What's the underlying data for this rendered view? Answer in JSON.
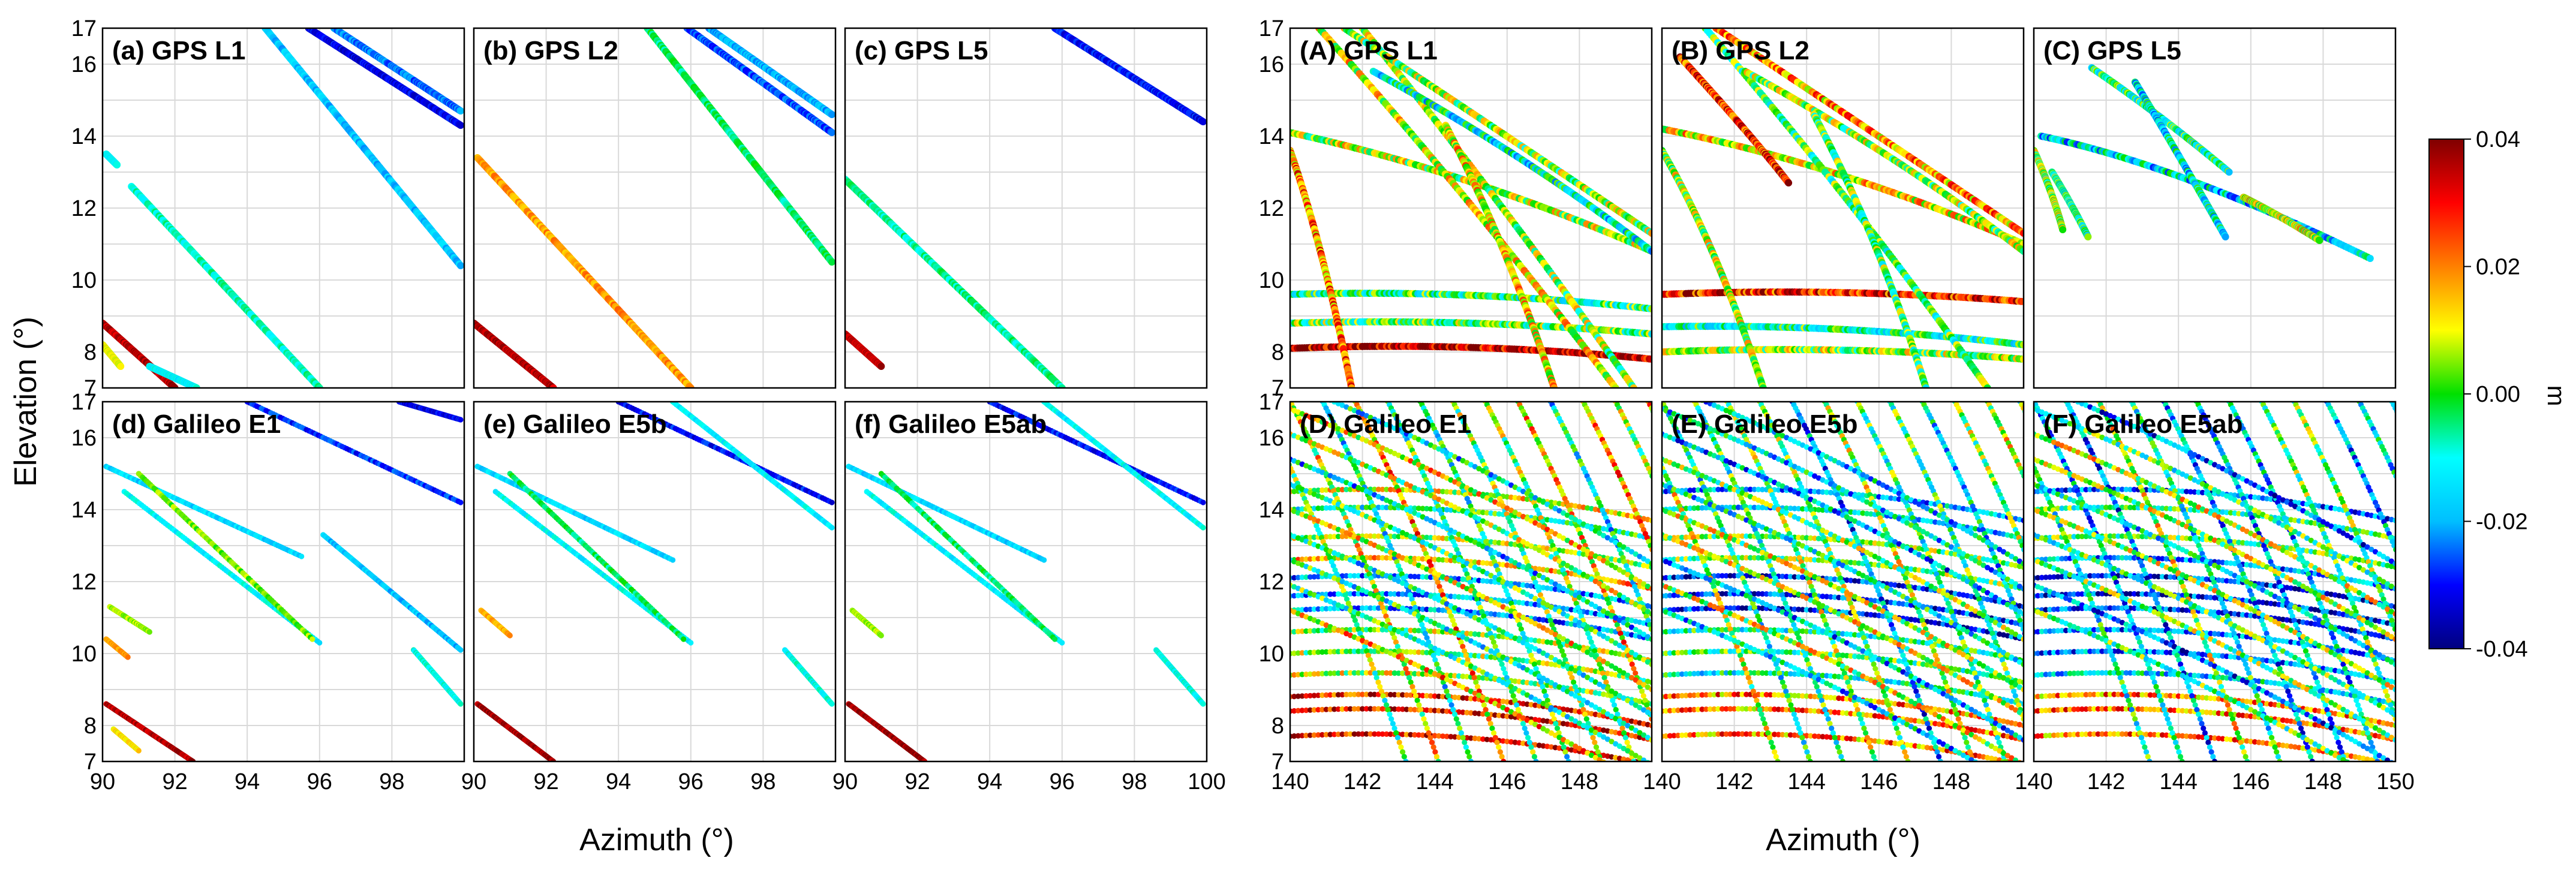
{
  "figure": {
    "y_axis_label": "Elevation (°)",
    "x_axis_label_left": "Azimuth (°)",
    "x_axis_label_right": "Azimuth (°)"
  },
  "colorbar": {
    "label": "m",
    "range": [
      -0.04,
      0.04
    ],
    "ticks": [
      "0.04",
      "0.02",
      "0.00",
      "-0.02",
      "-0.04"
    ],
    "colors": [
      "#00007f",
      "#0000ff",
      "#00bfff",
      "#00ffff",
      "#00e000",
      "#ffff00",
      "#ff8000",
      "#ff0000",
      "#7f0000"
    ]
  },
  "chart_data": [
    {
      "id": "a",
      "type": "scatter",
      "title": "(a) GPS L1",
      "xlim": [
        90,
        100
      ],
      "ylim": [
        7,
        17
      ],
      "xticks": [
        "90",
        "92",
        "94",
        "96",
        "98",
        "100"
      ],
      "yticks": [
        "7",
        "8",
        "10",
        "12",
        "14",
        "16",
        "17"
      ],
      "tracks": [
        {
          "x0": 90.1,
          "y0": 13.5,
          "x1": 90.4,
          "y1": 13.2,
          "v": -0.012
        },
        {
          "x0": 90.8,
          "y0": 12.6,
          "x1": 96.0,
          "y1": 7.0,
          "v": -0.008
        },
        {
          "x0": 94.5,
          "y0": 17.0,
          "x1": 99.9,
          "y1": 10.4,
          "v": -0.018
        },
        {
          "x0": 95.7,
          "y0": 17.0,
          "x1": 99.9,
          "y1": 14.3,
          "v": -0.032
        },
        {
          "x0": 96.4,
          "y0": 17.0,
          "x1": 99.9,
          "y1": 14.7,
          "v": -0.024
        },
        {
          "x0": 90.0,
          "y0": 8.8,
          "x1": 92.0,
          "y1": 7.0,
          "v": 0.036
        },
        {
          "x0": 90.0,
          "y0": 8.2,
          "x1": 90.5,
          "y1": 7.6,
          "v": 0.01
        },
        {
          "x0": 91.3,
          "y0": 7.6,
          "x1": 92.6,
          "y1": 7.0,
          "v": -0.012
        }
      ]
    },
    {
      "id": "b",
      "type": "scatter",
      "title": "(b) GPS L2",
      "xlim": [
        90,
        100
      ],
      "ylim": [
        7,
        17
      ],
      "xticks": [
        "90",
        "92",
        "94",
        "96",
        "98",
        "100"
      ],
      "yticks": [
        "7",
        "8",
        "10",
        "12",
        "14",
        "16",
        "17"
      ],
      "tracks": [
        {
          "x0": 90.1,
          "y0": 13.4,
          "x1": 96.0,
          "y1": 7.0,
          "v": 0.018
        },
        {
          "x0": 94.8,
          "y0": 17.0,
          "x1": 99.9,
          "y1": 10.5,
          "v": -0.004
        },
        {
          "x0": 95.9,
          "y0": 17.0,
          "x1": 99.9,
          "y1": 14.1,
          "v": -0.026
        },
        {
          "x0": 96.5,
          "y0": 17.0,
          "x1": 99.9,
          "y1": 14.6,
          "v": -0.02
        },
        {
          "x0": 90.0,
          "y0": 8.8,
          "x1": 92.2,
          "y1": 7.0,
          "v": 0.036
        }
      ]
    },
    {
      "id": "c",
      "type": "scatter",
      "title": "(c) GPS L5",
      "xlim": [
        90,
        100
      ],
      "ylim": [
        7,
        17
      ],
      "xticks": [
        "90",
        "92",
        "94",
        "96",
        "98",
        "100"
      ],
      "yticks": [
        "7",
        "8",
        "10",
        "12",
        "14",
        "16",
        "17"
      ],
      "tracks": [
        {
          "x0": 90.0,
          "y0": 12.8,
          "x1": 96.0,
          "y1": 7.0,
          "v": -0.006
        },
        {
          "x0": 95.8,
          "y0": 17.0,
          "x1": 99.9,
          "y1": 14.4,
          "v": -0.03
        },
        {
          "x0": 90.0,
          "y0": 8.5,
          "x1": 91.0,
          "y1": 7.6,
          "v": 0.034
        }
      ]
    },
    {
      "id": "d",
      "type": "scatter",
      "title": "(d) Galileo E1",
      "xlim": [
        90,
        100
      ],
      "ylim": [
        7,
        17
      ],
      "xticks": [
        "90",
        "92",
        "94",
        "96",
        "98",
        "100"
      ],
      "yticks": [
        "7",
        "8",
        "10",
        "12",
        "14",
        "16",
        "17"
      ],
      "tracks": [
        {
          "x0": 90.1,
          "y0": 15.2,
          "x1": 95.5,
          "y1": 12.7,
          "v": -0.016
        },
        {
          "x0": 90.6,
          "y0": 14.5,
          "x1": 96.0,
          "y1": 10.3,
          "v": -0.012
        },
        {
          "x0": 91.0,
          "y0": 15.0,
          "x1": 95.8,
          "y1": 10.4,
          "v": 0.004
        },
        {
          "x0": 94.0,
          "y0": 17.0,
          "x1": 99.9,
          "y1": 14.2,
          "v": -0.028
        },
        {
          "x0": 96.1,
          "y0": 13.3,
          "x1": 99.9,
          "y1": 10.1,
          "v": -0.018
        },
        {
          "x0": 98.6,
          "y0": 10.1,
          "x1": 99.9,
          "y1": 8.6,
          "v": -0.01
        },
        {
          "x0": 90.2,
          "y0": 11.3,
          "x1": 91.3,
          "y1": 10.6,
          "v": 0.006
        },
        {
          "x0": 90.1,
          "y0": 10.4,
          "x1": 90.7,
          "y1": 9.9,
          "v": 0.018
        },
        {
          "x0": 90.1,
          "y0": 8.6,
          "x1": 92.5,
          "y1": 7.0,
          "v": 0.036
        },
        {
          "x0": 90.3,
          "y0": 7.9,
          "x1": 91.0,
          "y1": 7.3,
          "v": 0.012
        },
        {
          "x0": 98.2,
          "y0": 17.0,
          "x1": 99.9,
          "y1": 16.5,
          "v": -0.032
        }
      ]
    },
    {
      "id": "e",
      "type": "scatter",
      "title": "(e) Galileo E5b",
      "xlim": [
        90,
        100
      ],
      "ylim": [
        7,
        17
      ],
      "xticks": [
        "90",
        "92",
        "94",
        "96",
        "98",
        "100"
      ],
      "yticks": [
        "7",
        "8",
        "10",
        "12",
        "14",
        "16",
        "17"
      ],
      "tracks": [
        {
          "x0": 90.1,
          "y0": 15.2,
          "x1": 95.5,
          "y1": 12.6,
          "v": -0.016
        },
        {
          "x0": 90.6,
          "y0": 14.5,
          "x1": 96.0,
          "y1": 10.3,
          "v": -0.012
        },
        {
          "x0": 91.0,
          "y0": 15.0,
          "x1": 95.8,
          "y1": 10.4,
          "v": -0.004
        },
        {
          "x0": 94.0,
          "y0": 17.0,
          "x1": 99.9,
          "y1": 14.2,
          "v": -0.03
        },
        {
          "x0": 95.5,
          "y0": 17.0,
          "x1": 99.9,
          "y1": 13.5,
          "v": -0.012
        },
        {
          "x0": 98.6,
          "y0": 10.1,
          "x1": 99.9,
          "y1": 8.6,
          "v": -0.01
        },
        {
          "x0": 90.2,
          "y0": 11.2,
          "x1": 91.0,
          "y1": 10.5,
          "v": 0.016
        },
        {
          "x0": 90.1,
          "y0": 8.6,
          "x1": 92.2,
          "y1": 7.0,
          "v": 0.038
        }
      ]
    },
    {
      "id": "f",
      "type": "scatter",
      "title": "(f) Galileo E5ab",
      "xlim": [
        90,
        100
      ],
      "ylim": [
        7,
        17
      ],
      "xticks": [
        "90",
        "92",
        "94",
        "96",
        "98",
        "100"
      ],
      "yticks": [
        "7",
        "8",
        "10",
        "12",
        "14",
        "16",
        "17"
      ],
      "tracks": [
        {
          "x0": 90.1,
          "y0": 15.2,
          "x1": 95.5,
          "y1": 12.6,
          "v": -0.016
        },
        {
          "x0": 90.6,
          "y0": 14.5,
          "x1": 96.0,
          "y1": 10.3,
          "v": -0.012
        },
        {
          "x0": 91.0,
          "y0": 15.0,
          "x1": 95.8,
          "y1": 10.4,
          "v": -0.004
        },
        {
          "x0": 94.0,
          "y0": 17.0,
          "x1": 99.9,
          "y1": 14.2,
          "v": -0.03
        },
        {
          "x0": 95.5,
          "y0": 17.0,
          "x1": 99.9,
          "y1": 13.5,
          "v": -0.012
        },
        {
          "x0": 98.6,
          "y0": 10.1,
          "x1": 99.9,
          "y1": 8.6,
          "v": -0.01
        },
        {
          "x0": 90.2,
          "y0": 11.2,
          "x1": 91.0,
          "y1": 10.5,
          "v": 0.006
        },
        {
          "x0": 90.1,
          "y0": 8.6,
          "x1": 92.2,
          "y1": 7.0,
          "v": 0.038
        }
      ]
    },
    {
      "id": "A",
      "type": "scatter",
      "title": "(A) GPS L1",
      "xlim": [
        140,
        150
      ],
      "ylim": [
        7,
        17
      ],
      "xticks": [
        "140",
        "142",
        "144",
        "146",
        "148",
        "150"
      ],
      "yticks": [
        "7",
        "8",
        "10",
        "12",
        "14",
        "16",
        "17"
      ],
      "tracks": [
        {
          "x0": 140.0,
          "y0": 8.1,
          "xm": 145.0,
          "ym": 8.3,
          "x1": 150.0,
          "y1": 7.8,
          "v": 0.036
        },
        {
          "x0": 140.0,
          "y0": 8.8,
          "xm": 145.0,
          "ym": 8.95,
          "x1": 150.0,
          "y1": 8.5,
          "v": 0.0
        },
        {
          "x0": 140.0,
          "y0": 9.6,
          "xm": 145.0,
          "ym": 9.75,
          "x1": 150.0,
          "y1": 9.2,
          "v": -0.004
        },
        {
          "x0": 140.0,
          "y0": 14.1,
          "xm": 145.0,
          "ym": 13.0,
          "x1": 150.0,
          "y1": 10.8,
          "v": 0.006
        },
        {
          "x0": 140.0,
          "y0": 13.6,
          "xm": 140.9,
          "ym": 11.0,
          "x1": 141.7,
          "y1": 7.0,
          "v": 0.02
        },
        {
          "x0": 140.8,
          "y0": 17.0,
          "xm": 145.0,
          "ym": 12.3,
          "x1": 149.0,
          "y1": 7.0,
          "v": 0.01
        },
        {
          "x0": 142.0,
          "y0": 17.0,
          "xm": 146.0,
          "ym": 12.0,
          "x1": 149.5,
          "y1": 7.0,
          "v": 0.004
        },
        {
          "x0": 142.3,
          "y0": 15.8,
          "xm": 146.5,
          "ym": 13.5,
          "x1": 150.0,
          "y1": 10.8,
          "v": -0.01
        },
        {
          "x0": 141.5,
          "y0": 17.0,
          "xm": 146.0,
          "ym": 14.0,
          "x1": 150.0,
          "y1": 11.3,
          "v": 0.004
        },
        {
          "x0": 144.3,
          "y0": 14.3,
          "xm": 146.0,
          "ym": 11.0,
          "x1": 147.3,
          "y1": 7.0,
          "v": 0.012
        }
      ]
    },
    {
      "id": "B",
      "type": "scatter",
      "title": "(B) GPS L2",
      "xlim": [
        140,
        150
      ],
      "ylim": [
        7,
        17
      ],
      "xticks": [
        "140",
        "142",
        "144",
        "146",
        "148",
        "150"
      ],
      "yticks": [
        "7",
        "8",
        "10",
        "12",
        "14",
        "16",
        "17"
      ],
      "tracks": [
        {
          "x0": 140.0,
          "y0": 8.0,
          "xm": 145.0,
          "ym": 8.2,
          "x1": 150.0,
          "y1": 7.8,
          "v": 0.004
        },
        {
          "x0": 140.0,
          "y0": 8.7,
          "xm": 145.0,
          "ym": 8.8,
          "x1": 150.0,
          "y1": 8.2,
          "v": -0.006
        },
        {
          "x0": 140.0,
          "y0": 9.6,
          "xm": 145.0,
          "ym": 9.8,
          "x1": 150.0,
          "y1": 9.4,
          "v": 0.03
        },
        {
          "x0": 140.0,
          "y0": 14.2,
          "xm": 145.0,
          "ym": 13.2,
          "x1": 150.0,
          "y1": 11.0,
          "v": 0.012
        },
        {
          "x0": 140.0,
          "y0": 13.6,
          "xm": 141.5,
          "ym": 11.0,
          "x1": 142.8,
          "y1": 7.0,
          "v": 0.006
        },
        {
          "x0": 140.5,
          "y0": 16.2,
          "xm": 142.5,
          "ym": 14.0,
          "x1": 143.5,
          "y1": 12.7,
          "v": 0.028
        },
        {
          "x0": 141.2,
          "y0": 17.0,
          "xm": 145.5,
          "ym": 12.0,
          "x1": 149.0,
          "y1": 7.0,
          "v": -0.002
        },
        {
          "x0": 142.3,
          "y0": 15.8,
          "xm": 146.5,
          "ym": 13.5,
          "x1": 150.0,
          "y1": 10.8,
          "v": 0.004
        },
        {
          "x0": 141.5,
          "y0": 17.0,
          "xm": 146.0,
          "ym": 14.0,
          "x1": 150.0,
          "y1": 11.3,
          "v": 0.018
        },
        {
          "x0": 144.2,
          "y0": 14.6,
          "xm": 146.0,
          "ym": 11.2,
          "x1": 147.3,
          "y1": 7.0,
          "v": 0.0
        }
      ]
    },
    {
      "id": "C",
      "type": "scatter",
      "title": "(C) GPS L5",
      "xlim": [
        140,
        150
      ],
      "ylim": [
        7,
        17
      ],
      "xticks": [
        "140",
        "142",
        "144",
        "146",
        "148",
        "150"
      ],
      "yticks": [
        "7",
        "8",
        "10",
        "12",
        "14",
        "16",
        "17"
      ],
      "tracks": [
        {
          "x0": 140.0,
          "y0": 13.6,
          "xm": 140.5,
          "ym": 12.5,
          "x1": 140.8,
          "y1": 11.4,
          "v": 0.004
        },
        {
          "x0": 140.5,
          "y0": 13.0,
          "xm": 141.0,
          "ym": 12.2,
          "x1": 141.5,
          "y1": 11.2,
          "v": -0.006
        },
        {
          "x0": 140.2,
          "y0": 14.0,
          "xm": 144.0,
          "ym": 13.2,
          "x1": 149.3,
          "y1": 10.6,
          "v": -0.014
        },
        {
          "x0": 141.6,
          "y0": 15.9,
          "xm": 143.5,
          "ym": 14.6,
          "x1": 145.4,
          "y1": 13.0,
          "v": -0.006
        },
        {
          "x0": 142.8,
          "y0": 15.5,
          "xm": 144.0,
          "ym": 13.5,
          "x1": 145.3,
          "y1": 11.2,
          "v": -0.012
        },
        {
          "x0": 145.8,
          "y0": 12.3,
          "xm": 146.8,
          "ym": 11.8,
          "x1": 147.9,
          "y1": 11.1,
          "v": 0.008
        }
      ]
    },
    {
      "id": "D",
      "type": "scatter",
      "title": "(D) Galileo E1",
      "xlim": [
        140,
        150
      ],
      "ylim": [
        7,
        17
      ],
      "xticks": [
        "140",
        "142",
        "144",
        "146",
        "148",
        "150"
      ],
      "yticks": [
        "7",
        "8",
        "10",
        "12",
        "14",
        "16",
        "17"
      ],
      "pattern": "dense",
      "bias": 0.0
    },
    {
      "id": "E",
      "type": "scatter",
      "title": "(E) Galileo E5b",
      "xlim": [
        140,
        150
      ],
      "ylim": [
        7,
        17
      ],
      "xticks": [
        "140",
        "142",
        "144",
        "146",
        "148",
        "150"
      ],
      "yticks": [
        "7",
        "8",
        "10",
        "12",
        "14",
        "16",
        "17"
      ],
      "pattern": "dense",
      "bias": -0.01
    },
    {
      "id": "F",
      "type": "scatter",
      "title": "(F) Galileo E5ab",
      "xlim": [
        140,
        150
      ],
      "ylim": [
        7,
        17
      ],
      "xticks": [
        "140",
        "142",
        "144",
        "146",
        "148",
        "150"
      ],
      "yticks": [
        "7",
        "8",
        "10",
        "12",
        "14",
        "16",
        "17"
      ],
      "pattern": "dense",
      "bias": -0.01
    }
  ]
}
